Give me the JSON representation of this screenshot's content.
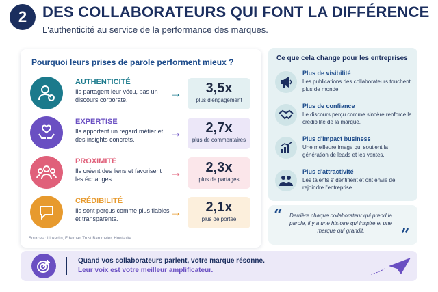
{
  "header": {
    "number": "2",
    "title": "DES COLLABORATEURS QUI FONT LA DIFFÉRENCE",
    "subtitle": "L'authenticité au service de la performance des marques."
  },
  "left": {
    "heading": "Pourquoi leurs prises de parole performent mieux ?",
    "rows": [
      {
        "title": "AUTHENTICITÉ",
        "desc": "Ils partagent leur vécu, pas un discours corporate.",
        "value": "3,5x",
        "label": "plus d'engagement",
        "color": "#1b7a8c",
        "icon": "person-badge-icon"
      },
      {
        "title": "EXPERTISE",
        "desc": "Ils apportent un regard métier et des insights concrets.",
        "value": "2,7x",
        "label": "plus de commentaires",
        "color": "#6a4fc2",
        "icon": "heart-hands-icon"
      },
      {
        "title": "PROXIMITÉ",
        "desc": "Ils créent des liens et favorisent les échanges.",
        "value": "2,3x",
        "label": "plus de partages",
        "color": "#e0607a",
        "icon": "group-icon"
      },
      {
        "title": "CRÉDIBILITÉ",
        "desc": "Ils sont perçus comme plus fiables et transparents.",
        "value": "2,1x",
        "label": "plus de portée",
        "color": "#e79a2e",
        "icon": "speech-bubble-icon"
      }
    ],
    "sources": "Sources : LinkedIn, Edelman Trust Barometer, Hootsuite"
  },
  "right": {
    "heading": "Ce que cela change pour les entreprises",
    "items": [
      {
        "title": "Plus de visibilité",
        "desc": "Les publications des collaborateurs touchent plus de monde.",
        "icon": "megaphone-icon"
      },
      {
        "title": "Plus de confiance",
        "desc": "Le discours perçu comme sincère renforce la crédibilité de la marque.",
        "icon": "handshake-icon"
      },
      {
        "title": "Plus d'impact business",
        "desc": "Une meilleure image qui soutient la génération de leads et les ventes.",
        "icon": "growth-chart-icon"
      },
      {
        "title": "Plus d'attractivité",
        "desc": "Les talents s'identifient et ont envie de rejoindre l'entreprise.",
        "icon": "people-icon"
      }
    ]
  },
  "quote": {
    "text": "Derrière chaque collaborateur qui prend la parole, il y a une histoire qui inspire et une marque qui grandit."
  },
  "banner": {
    "line1": "Quand vos collaborateurs parlent, votre marque résonne.",
    "line2": "Leur voix est votre meilleur amplificateur."
  }
}
